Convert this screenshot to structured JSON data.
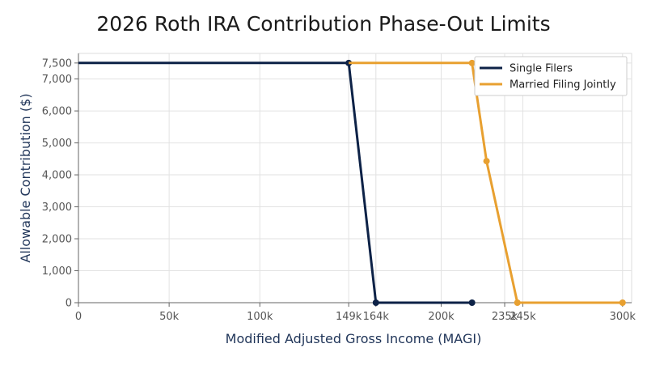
{
  "chart_data": {
    "type": "line",
    "title": "2026 Roth IRA Contribution Phase-Out Limits",
    "xlabel": "Modified Adjusted Gross Income (MAGI)",
    "ylabel": "Allowable Contribution ($)",
    "xlim": [
      0,
      305000
    ],
    "ylim": [
      0,
      7800
    ],
    "x_ticks": [
      {
        "value": 0,
        "label": "0"
      },
      {
        "value": 50000,
        "label": "50k"
      },
      {
        "value": 100000,
        "label": "100k"
      },
      {
        "value": 149000,
        "label": "149k"
      },
      {
        "value": 164000,
        "label": "164k"
      },
      {
        "value": 200000,
        "label": "200k"
      },
      {
        "value": 235000,
        "label": "235k"
      },
      {
        "value": 245000,
        "label": "245k"
      },
      {
        "value": 300000,
        "label": "300k"
      }
    ],
    "y_ticks": [
      {
        "value": 0,
        "label": "0"
      },
      {
        "value": 1000,
        "label": "1,000"
      },
      {
        "value": 2000,
        "label": "2,000"
      },
      {
        "value": 3000,
        "label": "3,000"
      },
      {
        "value": 4000,
        "label": "4,000"
      },
      {
        "value": 5000,
        "label": "5,000"
      },
      {
        "value": 6000,
        "label": "6,000"
      },
      {
        "value": 7000,
        "label": "7,000"
      },
      {
        "value": 7500,
        "label": "7,500"
      }
    ],
    "grid": true,
    "legend_position": "top-right",
    "series": [
      {
        "name": "Single Filers",
        "color": "#0d2247",
        "points": [
          {
            "x": 0,
            "y": 7500,
            "marker": false
          },
          {
            "x": 149000,
            "y": 7500,
            "marker": true
          },
          {
            "x": 164000,
            "y": 0,
            "marker": true
          },
          {
            "x": 217000,
            "y": 0,
            "marker": true
          }
        ]
      },
      {
        "name": "Married Filing Jointly",
        "color": "#e8a030",
        "points": [
          {
            "x": 149000,
            "y": 7500,
            "marker": false
          },
          {
            "x": 217000,
            "y": 7500,
            "marker": true
          },
          {
            "x": 225000,
            "y": 4430,
            "marker": true
          },
          {
            "x": 242000,
            "y": 0,
            "marker": true
          },
          {
            "x": 300000,
            "y": 0,
            "marker": true
          }
        ]
      }
    ]
  }
}
